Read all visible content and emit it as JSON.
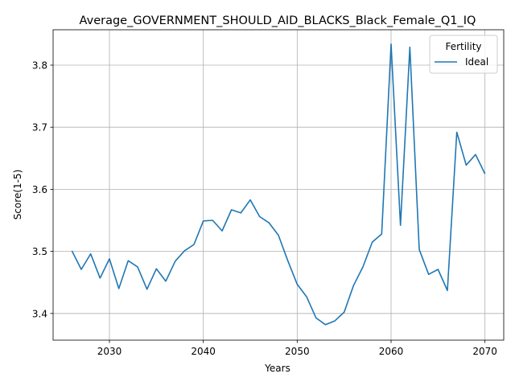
{
  "chart_data": {
    "type": "line",
    "title": "Average_GOVERNMENT_SHOULD_AID_BLACKS_Black_Female_Q1_IQ",
    "xlabel": "Years",
    "ylabel": "Score(1-5)",
    "xlim": [
      2024,
      2072
    ],
    "ylim": [
      3.357,
      3.857
    ],
    "xticks": [
      2030,
      2040,
      2050,
      2060,
      2070
    ],
    "yticks": [
      3.4,
      3.5,
      3.6,
      3.7,
      3.8
    ],
    "xtick_labels": [
      "2030",
      "2040",
      "2050",
      "2060",
      "2070"
    ],
    "ytick_labels": [
      "3.4",
      "3.5",
      "3.6",
      "3.7",
      "3.8"
    ],
    "grid": true,
    "legend": {
      "title": "Fertility",
      "position": "top-right"
    },
    "series": [
      {
        "name": "Ideal",
        "color": "#1f77b4",
        "x": [
          2026,
          2027,
          2028,
          2029,
          2030,
          2031,
          2032,
          2033,
          2034,
          2035,
          2036,
          2037,
          2038,
          2039,
          2040,
          2041,
          2042,
          2043,
          2044,
          2045,
          2046,
          2047,
          2048,
          2049,
          2050,
          2051,
          2052,
          2053,
          2054,
          2055,
          2056,
          2057,
          2058,
          2059,
          2060,
          2061,
          2062,
          2063,
          2064,
          2065,
          2066,
          2067,
          2068,
          2069,
          2070
        ],
        "y": [
          3.501,
          3.471,
          3.496,
          3.457,
          3.488,
          3.44,
          3.485,
          3.475,
          3.439,
          3.472,
          3.452,
          3.484,
          3.501,
          3.511,
          3.549,
          3.55,
          3.533,
          3.567,
          3.562,
          3.583,
          3.556,
          3.546,
          3.526,
          3.485,
          3.447,
          3.427,
          3.393,
          3.382,
          3.388,
          3.402,
          3.445,
          3.475,
          3.515,
          3.528,
          3.834,
          3.542,
          3.829,
          3.503,
          3.463,
          3.471,
          3.437,
          3.692,
          3.639,
          3.656,
          3.625
        ]
      }
    ]
  }
}
